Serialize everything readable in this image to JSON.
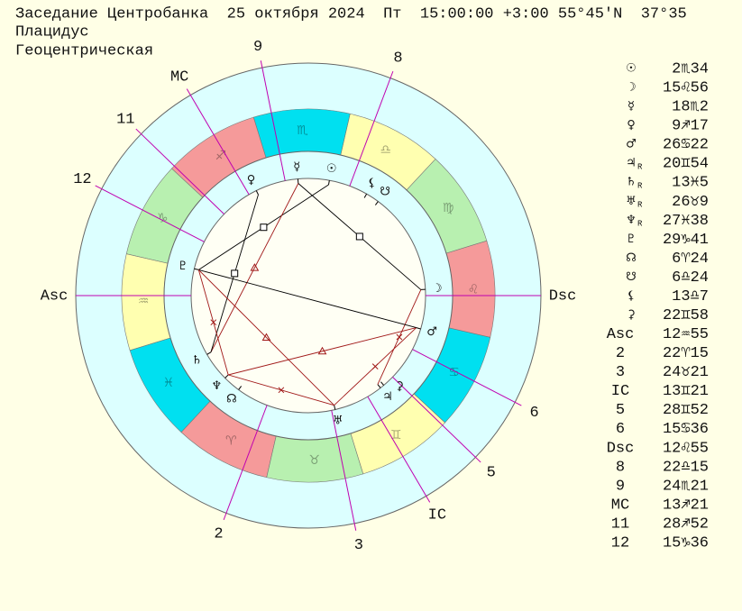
{
  "header": {
    "title": "Заседание Центробанка  25 октября 2024  Пт  15:00:00 +3:00 55°45'N  37°35",
    "house_system": "Плацидус",
    "mode": "Геоцентрическая"
  },
  "signs": [
    "♈",
    "♉",
    "♊",
    "♋",
    "♌",
    "♍",
    "♎",
    "♏",
    "♐",
    "♑",
    "♒",
    "♓"
  ],
  "planets": [
    {
      "glyph": "☉",
      "position": "2♏34"
    },
    {
      "glyph": "☽",
      "position": "15♌56"
    },
    {
      "glyph": "☿",
      "position": "18♏2"
    },
    {
      "glyph": "♀",
      "position": "9♐17"
    },
    {
      "glyph": "♂",
      "position": "26♋22"
    },
    {
      "glyph": "♃",
      "retro": "R",
      "position": "20♊54"
    },
    {
      "glyph": "♄",
      "retro": "R",
      "position": "13♓5"
    },
    {
      "glyph": "♅",
      "retro": "R",
      "position": "26♉9"
    },
    {
      "glyph": "♆",
      "retro": "R",
      "position": "27♓38"
    },
    {
      "glyph": "♇",
      "position": "29♑41"
    },
    {
      "glyph": "☊",
      "position": "6♈24"
    },
    {
      "glyph": "☋",
      "position": "6♎24"
    },
    {
      "glyph": "⚸",
      "position": "13♎7"
    },
    {
      "glyph": "⚳",
      "position": "22♊58"
    }
  ],
  "houses": [
    {
      "label": "Asc",
      "position": "12♒55"
    },
    {
      "label": "2",
      "position": "22♈15"
    },
    {
      "label": "3",
      "position": "24♉21"
    },
    {
      "label": "IC",
      "position": "13♊21"
    },
    {
      "label": "5",
      "position": "28♊52"
    },
    {
      "label": "6",
      "position": "15♋36"
    },
    {
      "label": "Dsc",
      "position": "12♌55"
    },
    {
      "label": "8",
      "position": "22♎15"
    },
    {
      "label": "9",
      "position": "24♏21"
    },
    {
      "label": "MC",
      "position": "13♐21"
    },
    {
      "label": "11",
      "position": "28♐52"
    },
    {
      "label": "12",
      "position": "15♑36"
    }
  ]
}
